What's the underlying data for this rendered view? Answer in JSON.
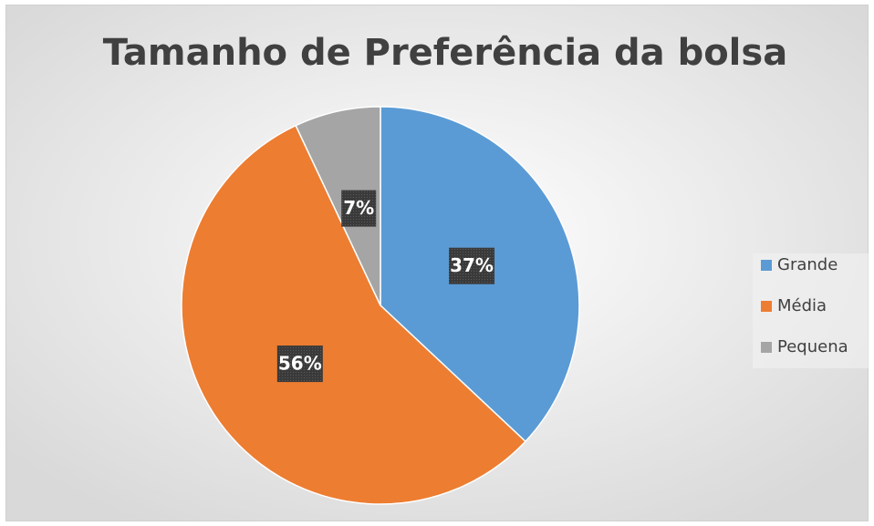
{
  "chart_data": {
    "type": "pie",
    "title": "Tamanho de Preferência da bolsa",
    "categories": [
      "Grande",
      "Média",
      "Pequena"
    ],
    "values": [
      37,
      56,
      7
    ],
    "value_labels": [
      "37%",
      "56%",
      "7%"
    ],
    "colors": [
      "#5b9bd5",
      "#ed7d31",
      "#a5a5a5"
    ],
    "legend": "right"
  }
}
